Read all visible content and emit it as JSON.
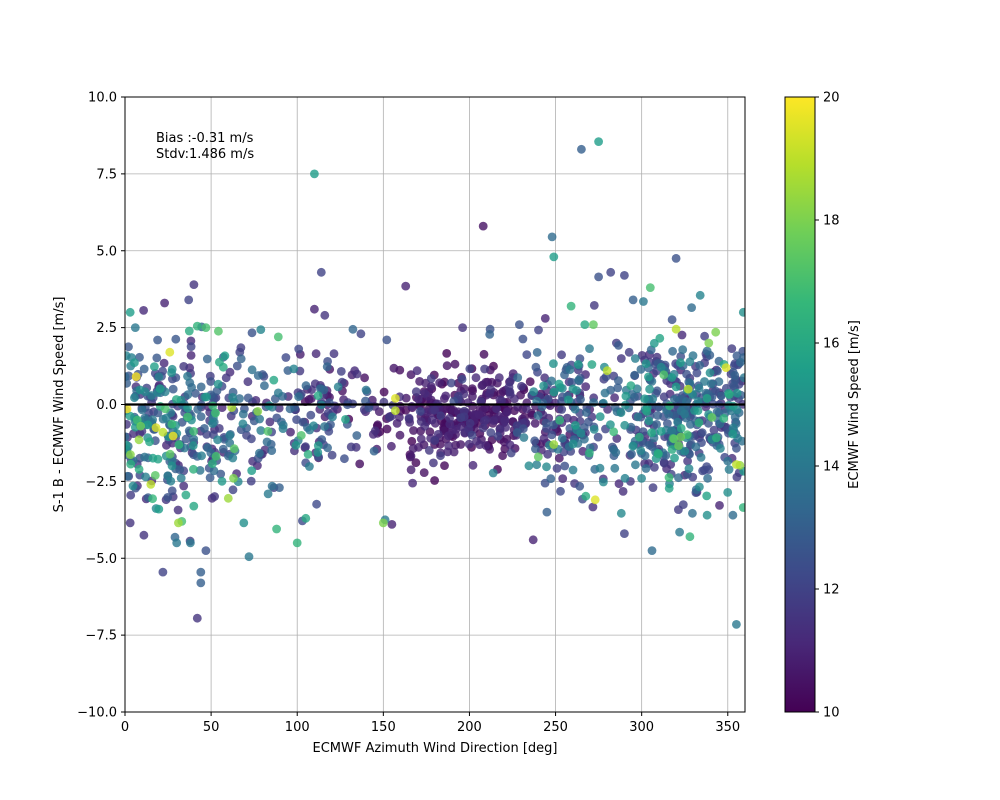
{
  "chart_data": {
    "type": "scatter",
    "xlabel": "ECMWF Azimuth Wind Direction [deg]",
    "ylabel": "S-1 B - ECMWF Wind Speed [m/s]",
    "xlim": [
      0,
      360
    ],
    "ylim": [
      -10,
      10
    ],
    "xticks": [
      0,
      50,
      100,
      150,
      200,
      250,
      300,
      350
    ],
    "yticks": [
      -10.0,
      -7.5,
      -5.0,
      -2.5,
      0.0,
      2.5,
      5.0,
      7.5,
      10.0
    ],
    "xtick_labels": [
      "0",
      "50",
      "100",
      "150",
      "200",
      "250",
      "300",
      "350"
    ],
    "ytick_labels": [
      "−10.0",
      "−7.5",
      "−5.0",
      "−2.5",
      "0.0",
      "2.5",
      "5.0",
      "7.5",
      "10.0"
    ],
    "grid": true,
    "reference_line_y": 0.0,
    "annotations": [
      "Bias :-0.31 m/s",
      "Stdv:1.486 m/s"
    ],
    "colorbar": {
      "label": "ECMWF Wind Speed [m/s]",
      "range": [
        10,
        20
      ],
      "ticks": [
        10,
        12,
        14,
        16,
        18,
        20
      ],
      "colormap": "viridis",
      "colors": [
        "#440154",
        "#482878",
        "#3e4989",
        "#31688e",
        "#26828e",
        "#1f9e89",
        "#35b779",
        "#6ece58",
        "#b5de2b",
        "#fde725"
      ]
    },
    "points": [
      [
        110,
        7.5,
        15.5
      ],
      [
        265,
        8.3,
        13.0
      ],
      [
        275,
        8.55,
        15.5
      ],
      [
        208,
        5.8,
        10.5
      ],
      [
        248,
        5.45,
        13.5
      ],
      [
        249,
        4.8,
        15.5
      ],
      [
        320,
        4.75,
        12.5
      ],
      [
        282,
        4.3,
        12.0
      ],
      [
        290,
        4.2,
        12.0
      ],
      [
        275,
        4.15,
        12.5
      ],
      [
        114,
        4.3,
        12.0
      ],
      [
        40,
        3.9,
        11.5
      ],
      [
        163,
        3.85,
        11.0
      ],
      [
        305,
        3.8,
        17.0
      ],
      [
        23,
        3.3,
        11.0
      ],
      [
        37,
        3.4,
        12.0
      ],
      [
        259,
        3.2,
        16.5
      ],
      [
        334,
        3.55,
        14.5
      ],
      [
        329,
        3.15,
        13.5
      ],
      [
        110,
        3.1,
        11.0
      ],
      [
        116,
        2.9,
        11.5
      ],
      [
        137,
        2.3,
        12.0
      ],
      [
        152,
        2.1,
        12.5
      ],
      [
        196,
        2.5,
        11.5
      ],
      [
        212,
        2.45,
        12.5
      ],
      [
        229,
        2.6,
        12.5
      ],
      [
        3,
        3.0,
        15.5
      ],
      [
        6,
        2.5,
        14.0
      ],
      [
        42,
        2.55,
        16.5
      ],
      [
        47,
        2.5,
        17.0
      ],
      [
        89,
        2.2,
        17.0
      ],
      [
        343,
        2.35,
        18.0
      ],
      [
        359,
        3.0,
        15.0
      ],
      [
        295,
        3.4,
        13.0
      ],
      [
        301,
        3.35,
        14.0
      ],
      [
        267,
        2.6,
        16.0
      ],
      [
        272,
        2.6,
        17.5
      ],
      [
        320,
        2.45,
        19.0
      ],
      [
        11,
        -4.25,
        11.5
      ],
      [
        30,
        -4.5,
        14.0
      ],
      [
        22,
        -5.45,
        12.0
      ],
      [
        44,
        -5.45,
        13.0
      ],
      [
        44,
        -5.8,
        13.0
      ],
      [
        42,
        -6.95,
        11.5
      ],
      [
        47,
        -4.75,
        12.5
      ],
      [
        72,
        -4.95,
        14.0
      ],
      [
        100,
        -4.5,
        16.5
      ],
      [
        105,
        -3.7,
        16.0
      ],
      [
        155,
        -3.9,
        11.0
      ],
      [
        151,
        -3.75,
        14.0
      ],
      [
        150,
        -3.85,
        18.0
      ],
      [
        237,
        -4.4,
        11.0
      ],
      [
        306,
        -4.75,
        13.5
      ],
      [
        355,
        -7.15,
        14.0
      ],
      [
        245,
        -3.5,
        13.0
      ],
      [
        273,
        -3.1,
        19.5
      ],
      [
        328,
        -4.3,
        16.5
      ],
      [
        322,
        -4.15,
        14.0
      ],
      [
        338,
        -3.6,
        15.0
      ],
      [
        353,
        -3.6,
        13.5
      ],
      [
        359,
        -3.35,
        16.5
      ],
      [
        290,
        -4.2,
        12.0
      ],
      [
        88,
        -4.05,
        16.5
      ],
      [
        69,
        -3.85,
        15.0
      ],
      [
        33,
        -3.8,
        17.0
      ],
      [
        38,
        -4.5,
        14.0
      ],
      [
        3,
        -3.85,
        11.5
      ],
      [
        28,
        -3.0,
        11.5
      ],
      [
        240,
        -1.7,
        17.5
      ],
      [
        249,
        -1.3,
        18.5
      ],
      [
        157,
        0.2,
        19.5
      ],
      [
        157,
        -0.2,
        19.0
      ],
      [
        18,
        -0.75,
        19.5
      ],
      [
        22,
        -0.9,
        19.0
      ],
      [
        280,
        1.1,
        19.0
      ],
      [
        327,
        0.5,
        19.0
      ],
      [
        15,
        -2.6,
        19.0
      ],
      [
        31,
        -3.85,
        18.5
      ],
      [
        63,
        -2.4,
        18.0
      ],
      [
        60,
        -3.05,
        18.5
      ],
      [
        355,
        -1.95,
        19.0
      ],
      [
        349,
        1.2,
        19.5
      ],
      [
        26,
        1.7,
        19.5
      ],
      [
        339,
        2.0,
        18.0
      ]
    ]
  }
}
